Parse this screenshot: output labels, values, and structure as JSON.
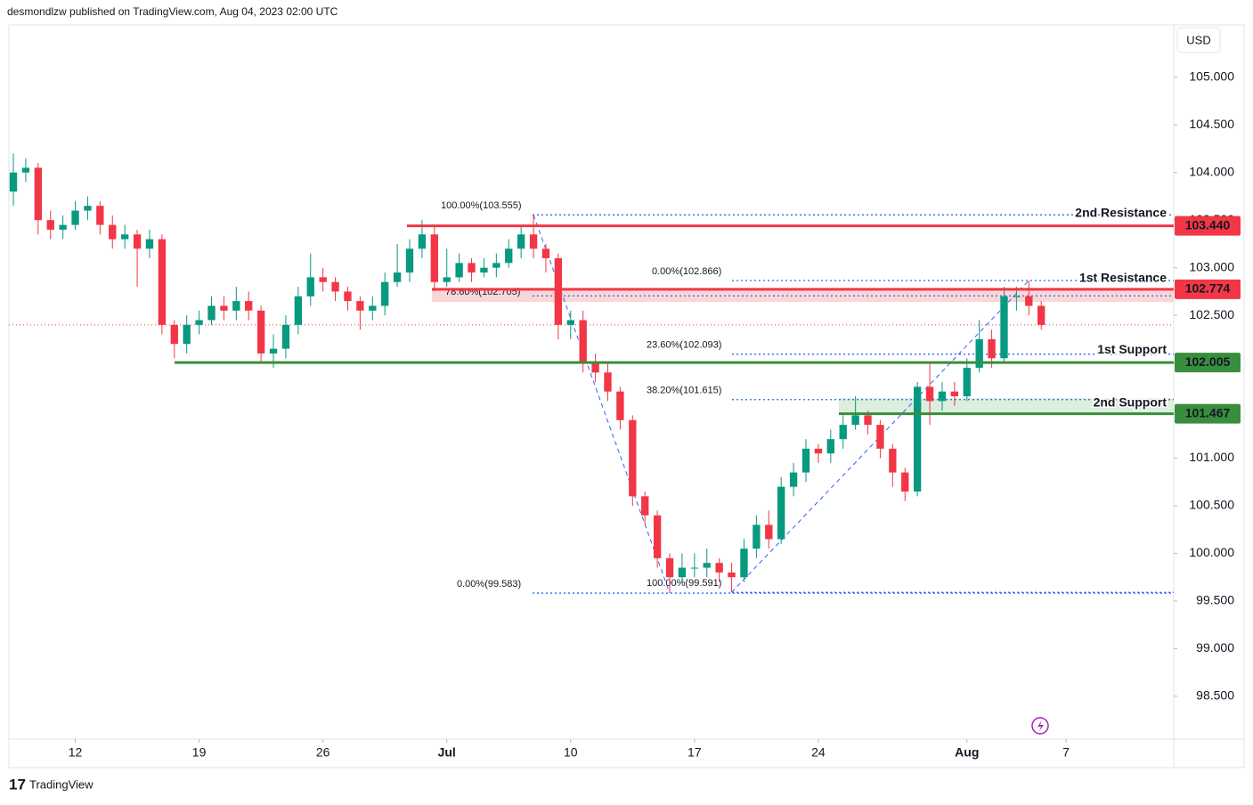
{
  "header": "desmondlzw published on TradingView.com, Aug 04, 2023 02:00 UTC",
  "footer": "TradingView",
  "chart_data": {
    "type": "candlestick",
    "currency": "USD",
    "up_color": "#089981",
    "down_color": "#f23645",
    "open": [
      103.8,
      104.0,
      104.05,
      103.5,
      103.4,
      103.45,
      103.6,
      103.65,
      103.45,
      103.3,
      103.35,
      103.2,
      103.3,
      102.4,
      102.2,
      102.4,
      102.45,
      102.6,
      102.55,
      102.65,
      102.55,
      102.1,
      102.15,
      102.4,
      102.7,
      102.9,
      102.85,
      102.75,
      102.65,
      102.55,
      102.6,
      102.85,
      102.95,
      103.2,
      103.35,
      102.85,
      102.9,
      103.05,
      102.95,
      103.0,
      103.05,
      103.2,
      103.35,
      103.2,
      103.1,
      102.4,
      102.45,
      102.0,
      101.9,
      101.7,
      101.4,
      100.6,
      100.4,
      99.95,
      99.75,
      99.85,
      99.85,
      99.9,
      99.8,
      99.75,
      100.05,
      100.3,
      100.15,
      100.7,
      100.85,
      101.1,
      101.05,
      101.2,
      101.35,
      101.45,
      101.35,
      101.1,
      100.85,
      100.65,
      101.75,
      101.6,
      101.7,
      101.65,
      101.95,
      102.25,
      102.05,
      102.7,
      102.7,
      102.6
    ],
    "high": [
      104.2,
      104.15,
      104.1,
      103.6,
      103.55,
      103.7,
      103.75,
      103.7,
      103.55,
      103.45,
      103.4,
      103.4,
      103.35,
      102.45,
      102.5,
      102.55,
      102.7,
      102.7,
      102.8,
      102.75,
      102.6,
      102.3,
      102.5,
      102.8,
      103.15,
      103.0,
      102.9,
      102.8,
      102.7,
      102.7,
      102.95,
      103.25,
      103.3,
      103.5,
      103.45,
      103.2,
      103.15,
      103.1,
      103.1,
      103.15,
      103.3,
      103.45,
      103.555,
      103.25,
      103.15,
      102.55,
      102.55,
      102.1,
      102.0,
      101.75,
      101.45,
      100.65,
      100.45,
      100.0,
      100.0,
      100.0,
      100.05,
      99.95,
      99.9,
      100.15,
      100.4,
      100.45,
      100.8,
      100.95,
      101.2,
      101.15,
      101.3,
      101.45,
      101.65,
      101.5,
      101.4,
      101.15,
      100.9,
      101.8,
      102.0,
      101.8,
      101.8,
      102.05,
      102.45,
      102.35,
      102.8,
      102.8,
      102.866,
      102.65
    ],
    "low": [
      103.65,
      103.9,
      103.35,
      103.3,
      103.3,
      103.4,
      103.5,
      103.35,
      103.2,
      103.2,
      102.8,
      103.1,
      102.3,
      102.05,
      102.1,
      102.3,
      102.4,
      102.45,
      102.45,
      102.45,
      102.0,
      101.95,
      102.05,
      102.3,
      102.6,
      102.75,
      102.65,
      102.55,
      102.35,
      102.45,
      102.5,
      102.8,
      102.85,
      103.1,
      102.75,
      102.8,
      102.85,
      102.85,
      102.9,
      102.9,
      103.0,
      103.1,
      103.1,
      102.95,
      102.25,
      102.25,
      101.9,
      101.8,
      101.6,
      101.3,
      100.5,
      100.3,
      99.85,
      99.583,
      99.7,
      99.75,
      99.75,
      99.7,
      99.591,
      99.7,
      99.95,
      100.05,
      100.1,
      100.6,
      100.75,
      100.95,
      100.95,
      101.1,
      101.3,
      101.25,
      101.0,
      100.7,
      100.55,
      100.6,
      101.35,
      101.5,
      101.55,
      101.6,
      101.9,
      101.95,
      102.0,
      102.55,
      102.5,
      102.35
    ],
    "close": [
      104.0,
      104.05,
      103.5,
      103.4,
      103.45,
      103.6,
      103.65,
      103.45,
      103.3,
      103.35,
      103.2,
      103.3,
      102.4,
      102.2,
      102.4,
      102.45,
      102.6,
      102.55,
      102.65,
      102.55,
      102.1,
      102.15,
      102.4,
      102.7,
      102.9,
      102.85,
      102.75,
      102.65,
      102.55,
      102.6,
      102.85,
      102.95,
      103.2,
      103.35,
      102.85,
      102.9,
      103.05,
      102.95,
      103.0,
      103.05,
      103.2,
      103.35,
      103.2,
      103.1,
      102.4,
      102.45,
      102.0,
      101.9,
      101.7,
      101.4,
      100.6,
      100.4,
      99.95,
      99.75,
      99.85,
      99.85,
      99.9,
      99.8,
      99.75,
      100.05,
      100.3,
      100.15,
      100.7,
      100.85,
      101.1,
      101.05,
      101.2,
      101.35,
      101.45,
      101.35,
      101.1,
      100.85,
      100.65,
      101.75,
      101.6,
      101.7,
      101.65,
      101.95,
      102.25,
      102.05,
      102.7,
      102.7,
      102.6,
      102.4
    ],
    "xlim": [
      -0.36,
      93.7
    ],
    "xticks": [
      {
        "value": 5,
        "label": "12"
      },
      {
        "value": 15,
        "label": "19"
      },
      {
        "value": 25,
        "label": "26"
      },
      {
        "value": 35,
        "label": "Jul"
      },
      {
        "value": 45,
        "label": "10"
      },
      {
        "value": 55,
        "label": "17"
      },
      {
        "value": 65,
        "label": "24"
      },
      {
        "value": 77,
        "label": "Aug"
      },
      {
        "value": 85,
        "label": "7"
      }
    ],
    "ylim": [
      98.05,
      105.55
    ],
    "yticks": [
      {
        "value": 98.5,
        "label": "98.500"
      },
      {
        "value": 99,
        "label": "99.000"
      },
      {
        "value": 99.5,
        "label": "99.500"
      },
      {
        "value": 100,
        "label": "100.000"
      },
      {
        "value": 100.5,
        "label": "100.500"
      },
      {
        "value": 101,
        "label": "101.000"
      },
      {
        "value": 101.5,
        "label": "101.500"
      },
      {
        "value": 102,
        "label": "102.000"
      },
      {
        "value": 102.5,
        "label": "102.500"
      },
      {
        "value": 103,
        "label": "103.000"
      },
      {
        "value": 103.5,
        "label": "103.500"
      },
      {
        "value": 104,
        "label": "104.000"
      },
      {
        "value": 104.5,
        "label": "104.500"
      },
      {
        "value": 105,
        "label": "105.000"
      }
    ],
    "zones": [
      {
        "low": 102.64,
        "high": 102.774,
        "color": "#f9d0d0"
      },
      {
        "low": 101.467,
        "high": 101.63,
        "color": "#d6ebd6"
      }
    ],
    "levels": [
      {
        "name": "2nd Resistance",
        "value": 103.44,
        "value_label": "103.440",
        "color": "#f23645"
      },
      {
        "name": "1st Resistance",
        "value": 102.774,
        "value_label": "102.774",
        "color": "#f23645"
      },
      {
        "name": "1st Support",
        "value": 102.005,
        "value_label": "102.005",
        "color": "#388e3c"
      },
      {
        "name": "2nd Support",
        "value": 101.467,
        "value_label": "101.467",
        "color": "#388e3c"
      }
    ],
    "fib_color": "#2962ff",
    "fibs": [
      {
        "label": "100.00%(103.555)",
        "value": 103.555
      },
      {
        "label": "78.60%(102.705)",
        "value": 102.705
      },
      {
        "label": "0.00%(99.583)",
        "value": 99.583
      },
      {
        "label": "0.00%(102.866)",
        "value": 102.866
      },
      {
        "label": "23.60%(102.093)",
        "value": 102.093
      },
      {
        "label": "38.20%(101.615)",
        "value": 101.615
      },
      {
        "label": "100.00%(99.591)",
        "value": 99.591
      }
    ]
  }
}
